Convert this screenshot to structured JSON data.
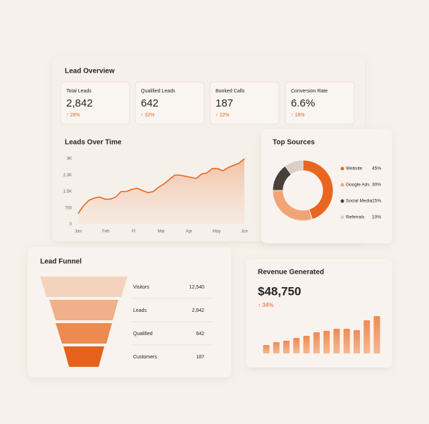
{
  "overview": {
    "title": "Lead Overview",
    "kpis": [
      {
        "label": "Total Leads",
        "value": "2,842",
        "change": "↑ 28%"
      },
      {
        "label": "Qualified Leads",
        "value": "642",
        "change": "↑ 32%"
      },
      {
        "label": "Booked Calls",
        "value": "187",
        "change": "↑ 22%"
      },
      {
        "label": "Conversion Rate",
        "value": "6.6%",
        "change": "↑ 18%"
      }
    ]
  },
  "leads_over_time": {
    "type": "area",
    "title": "Leads Over Time",
    "x_labels": [
      "Jan",
      "Feb",
      "Fl",
      "Mar",
      "Apr",
      "May",
      "Jun"
    ],
    "values": [
      500,
      850,
      1100,
      1200,
      1250,
      1150,
      1150,
      1250,
      1500,
      1500,
      1600,
      1650,
      1550,
      1450,
      1500,
      1700,
      1850,
      2050,
      2250,
      2250,
      2200,
      2150,
      2100,
      2300,
      2350,
      2550,
      2550,
      2450,
      2600,
      2700,
      2800,
      3000
    ],
    "ylim": [
      0,
      3000
    ],
    "yticks": [
      0,
      750,
      {
        "value": 1500,
        "label": "1.5K"
      },
      {
        "value": 2250,
        "label": "2.3K"
      },
      {
        "value": 3000,
        "label": "3K"
      }
    ],
    "color": "#e8661f"
  },
  "top_sources": {
    "type": "donut",
    "title": "Top Sources",
    "categories": [
      "Website",
      "Google Ads",
      "Social Media",
      "Referrals"
    ],
    "values": [
      45,
      30,
      15,
      10
    ],
    "value_labels": [
      "45%",
      "30%",
      "15%",
      "10%"
    ],
    "colors": [
      "#e8661f",
      "#f2a477",
      "#4a403a",
      "#d9cfc5"
    ]
  },
  "funnel": {
    "title": "Lead Funnel",
    "stages": [
      {
        "label": "Visitors",
        "value": "12,540"
      },
      {
        "label": "Leads",
        "value": "2,842"
      },
      {
        "label": "Qualified",
        "value": "642"
      },
      {
        "label": "Customers",
        "value": "187"
      }
    ]
  },
  "revenue": {
    "title": "Revenue Generated",
    "amount": "$48,750",
    "change": "↑ 34%",
    "type": "bar",
    "values": [
      12,
      16,
      18,
      22,
      25,
      30,
      32,
      35,
      35,
      33,
      47,
      53
    ],
    "color": "#ee8a55"
  }
}
